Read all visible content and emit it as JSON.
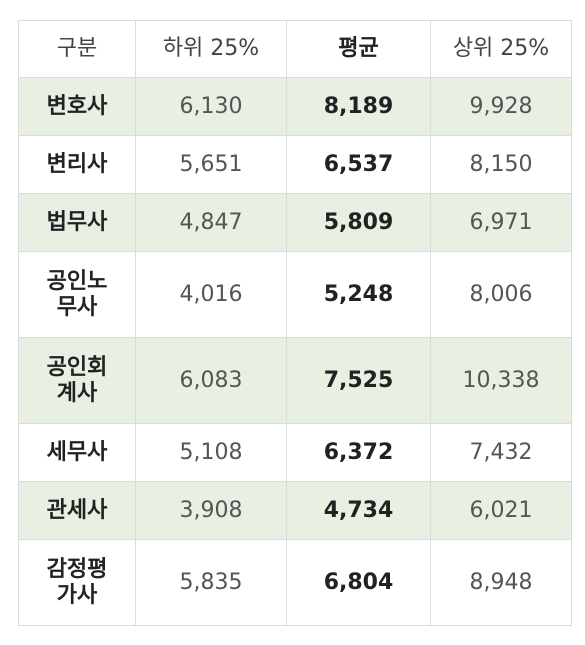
{
  "headers": [
    "구분",
    "하위 25%",
    "평균",
    "상위 25%"
  ],
  "rows": [
    {
      "name": [
        "변호사"
      ],
      "low": "6,130",
      "avg": "8,189",
      "high": "9,928"
    },
    {
      "name": [
        "변리사"
      ],
      "low": "5,651",
      "avg": "6,537",
      "high": "8,150"
    },
    {
      "name": [
        "법무사"
      ],
      "low": "4,847",
      "avg": "5,809",
      "high": "6,971"
    },
    {
      "name": [
        "공인노",
        "무사"
      ],
      "low": "4,016",
      "avg": "5,248",
      "high": "8,006"
    },
    {
      "name": [
        "공인회",
        "계사"
      ],
      "low": "6,083",
      "avg": "7,525",
      "high": "10,338"
    },
    {
      "name": [
        "세무사"
      ],
      "low": "5,108",
      "avg": "6,372",
      "high": "7,432"
    },
    {
      "name": [
        "관세사"
      ],
      "low": "3,908",
      "avg": "4,734",
      "high": "6,021"
    },
    {
      "name": [
        "감정평",
        "가사"
      ],
      "low": "5,835",
      "avg": "6,804",
      "high": "8,948"
    }
  ],
  "colors": {
    "row_alt": "#e8efe3",
    "border": "#dcdcdc"
  }
}
